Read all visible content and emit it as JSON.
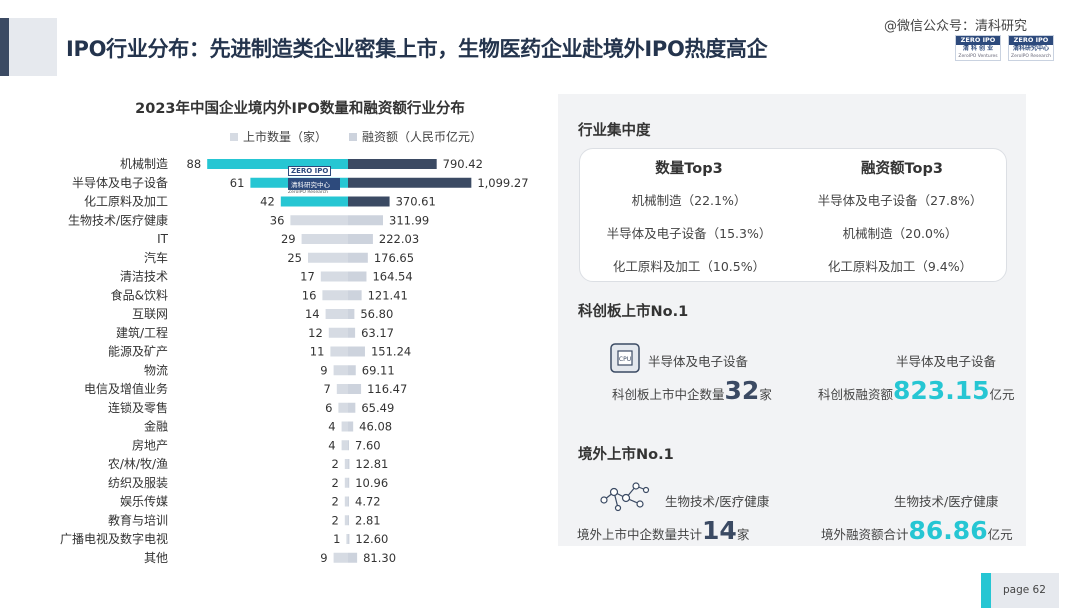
{
  "header": {
    "title": "IPO行业分布：先进制造类企业密集上市，生物医药企业赴境外IPO热度高企",
    "watermark": "@微信公众号：清科研究",
    "logos": [
      {
        "top": "ZERO IPO",
        "mid": "清 科 创 业",
        "bot": "ZeroIPO Ventures"
      },
      {
        "top": "ZERO IPO",
        "mid": "清科研究中心",
        "bot": "ZeroIPO Research"
      }
    ]
  },
  "chart_inner_logo": {
    "top": "ZERO IPO",
    "mid": "清科研究中心",
    "bot": "ZeroIPO Research"
  },
  "chart_data": {
    "type": "bar",
    "title": "2023年中国企业境内外IPO数量和融资额行业分布",
    "legend_position": "top",
    "categories": [
      "机械制造",
      "半导体及电子设备",
      "化工原料及加工",
      "生物技术/医疗健康",
      "IT",
      "汽车",
      "清洁技术",
      "食品&饮料",
      "互联网",
      "建筑/工程",
      "能源及矿产",
      "物流",
      "电信及增值业务",
      "连锁及零售",
      "金融",
      "房地产",
      "农/林/牧/渔",
      "纺织及服装",
      "娱乐传媒",
      "教育与培训",
      "广播电视及数字电视",
      "其他"
    ],
    "series": [
      {
        "name": "上市数量（家）",
        "values": [
          88,
          61,
          42,
          36,
          29,
          25,
          17,
          16,
          14,
          12,
          11,
          9,
          7,
          6,
          4,
          4,
          2,
          2,
          2,
          2,
          1,
          9
        ],
        "labels": [
          "88",
          "61",
          "42",
          "36",
          "29",
          "25",
          "17",
          "16",
          "14",
          "12",
          "11",
          "9",
          "7",
          "6",
          "4",
          "4",
          "2",
          "2",
          "2",
          "2",
          "1",
          "9"
        ]
      },
      {
        "name": "融资额（人民币亿元）",
        "values": [
          790.42,
          1099.27,
          370.61,
          311.99,
          222.03,
          176.65,
          164.54,
          121.41,
          56.8,
          63.17,
          151.24,
          69.11,
          116.47,
          65.49,
          46.08,
          7.6,
          12.81,
          10.96,
          4.72,
          2.81,
          12.6,
          81.3
        ],
        "labels": [
          "790.42",
          "1,099.27",
          "370.61",
          "311.99",
          "222.03",
          "176.65",
          "164.54",
          "121.41",
          "56.80",
          "63.17",
          "151.24",
          "69.11",
          "116.47",
          "65.49",
          "46.08",
          "7.60",
          "12.81",
          "10.96",
          "4.72",
          "2.81",
          "12.60",
          "81.30"
        ]
      }
    ],
    "highlight_top": 3,
    "colors": {
      "count_top": "#26c6d3",
      "count_rest": "#d6dbe3",
      "amount_top": "#3b4a63",
      "amount_rest": "#cdd3dd"
    }
  },
  "right": {
    "concentration": {
      "heading": "行业集中度",
      "count_title": "数量Top3",
      "amount_title": "融资额Top3",
      "count_items": [
        "机械制造（22.1%）",
        "半导体及电子设备（15.3%）",
        "化工原料及加工（10.5%）"
      ],
      "amount_items": [
        "半导体及电子设备（27.8%）",
        "机械制造（20.0%）",
        "化工原料及加工（9.4%）"
      ]
    },
    "star_market": {
      "heading": "科创板上市No.1",
      "count_industry": "半导体及电子设备",
      "amount_industry": "半导体及电子设备",
      "count_prefix": "科创板上市中企数量",
      "count_value": "32",
      "count_unit": "家",
      "amount_prefix": "科创板融资额",
      "amount_value": "823.15",
      "amount_unit": "亿元"
    },
    "overseas": {
      "heading": "境外上市No.1",
      "count_industry": "生物技术/医疗健康",
      "amount_industry": "生物技术/医疗健康",
      "count_prefix": "境外上市中企数量共计",
      "count_value": "14",
      "count_unit": "家",
      "amount_prefix": "境外融资额合计",
      "amount_value": "86.86",
      "amount_unit": "亿元"
    }
  },
  "footer": {
    "page": "page  62"
  },
  "icons": {
    "star_market": "chip-icon",
    "overseas": "molecule-network-icon"
  }
}
